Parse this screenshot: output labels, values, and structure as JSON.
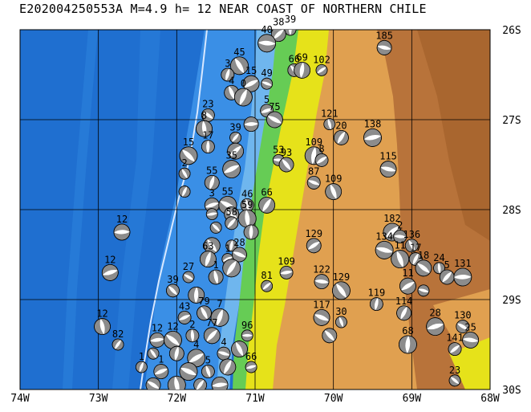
{
  "title": "E202004250553A M=4.9 h= 12 NEAR COAST OF NORTHERN CHILE",
  "x_ticks": [
    "74W",
    "73W",
    "72W",
    "71W",
    "70W",
    "69W",
    "68W"
  ],
  "y_ticks": [
    "26S",
    "27S",
    "28S",
    "29S",
    "30S"
  ],
  "colors": {
    "deep_ocean": "#1f6fd0",
    "mid_ocean": "#2f86e0",
    "shelf": "#6fb6ee",
    "coast_green": "#66cc55",
    "lowland_yellow": "#e6e21a",
    "highland_orange": "#e0a050",
    "highland_brown": "#b8733a",
    "trench_line": "#d8e8ff",
    "grid": "#000000"
  },
  "events": [
    {
      "lon": -70.55,
      "lat": -26.0,
      "label": "39"
    },
    {
      "lon": -70.7,
      "lat": -26.05,
      "label": "38"
    },
    {
      "lon": -70.85,
      "lat": -26.15,
      "label": "40"
    },
    {
      "lon": -70.5,
      "lat": -26.45,
      "label": "66"
    },
    {
      "lon": -70.4,
      "lat": -26.45,
      "label": "69"
    },
    {
      "lon": -70.15,
      "lat": -26.45,
      "label": "102"
    },
    {
      "lon": -69.35,
      "lat": -26.2,
      "label": "185"
    },
    {
      "lon": -71.2,
      "lat": -26.4,
      "label": "45"
    },
    {
      "lon": -71.35,
      "lat": -26.5,
      "label": "3"
    },
    {
      "lon": -71.05,
      "lat": -26.6,
      "label": "15"
    },
    {
      "lon": -70.85,
      "lat": -26.6,
      "label": "49"
    },
    {
      "lon": -71.3,
      "lat": -26.7,
      "label": "4"
    },
    {
      "lon": -71.15,
      "lat": -26.75,
      "label": "0"
    },
    {
      "lon": -70.85,
      "lat": -26.9,
      "label": "5"
    },
    {
      "lon": -70.75,
      "lat": -27.0,
      "label": "75"
    },
    {
      "lon": -70.05,
      "lat": -27.05,
      "label": "121"
    },
    {
      "lon": -69.9,
      "lat": -27.2,
      "label": "20"
    },
    {
      "lon": -69.5,
      "lat": -27.2,
      "label": "138"
    },
    {
      "lon": -71.6,
      "lat": -26.95,
      "label": "23"
    },
    {
      "lon": -71.65,
      "lat": -27.1,
      "label": "8"
    },
    {
      "lon": -71.25,
      "lat": -27.2,
      "label": "39"
    },
    {
      "lon": -71.05,
      "lat": -27.05,
      "label": ""
    },
    {
      "lon": -71.85,
      "lat": -27.4,
      "label": "15"
    },
    {
      "lon": -71.6,
      "lat": -27.3,
      "label": "17"
    },
    {
      "lon": -71.25,
      "lat": -27.35,
      "label": ""
    },
    {
      "lon": -70.7,
      "lat": -27.45,
      "label": "53"
    },
    {
      "lon": -70.6,
      "lat": -27.5,
      "label": "93"
    },
    {
      "lon": -70.25,
      "lat": -27.4,
      "label": "109"
    },
    {
      "lon": -70.15,
      "lat": -27.45,
      "label": "8"
    },
    {
      "lon": -69.3,
      "lat": -27.55,
      "label": "115"
    },
    {
      "lon": -71.9,
      "lat": -27.6,
      "label": "2"
    },
    {
      "lon": -71.55,
      "lat": -27.7,
      "label": "55"
    },
    {
      "lon": -71.3,
      "lat": -27.55,
      "label": "35"
    },
    {
      "lon": -70.25,
      "lat": -27.7,
      "label": "87"
    },
    {
      "lon": -70.0,
      "lat": -27.8,
      "label": "109"
    },
    {
      "lon": -71.9,
      "lat": -27.8,
      "label": ""
    },
    {
      "lon": -71.55,
      "lat": -27.95,
      "label": "3"
    },
    {
      "lon": -71.35,
      "lat": -27.95,
      "label": "55"
    },
    {
      "lon": -71.1,
      "lat": -27.95,
      "label": "46"
    },
    {
      "lon": -70.85,
      "lat": -27.95,
      "label": "66"
    },
    {
      "lon": -71.55,
      "lat": -28.05,
      "label": ""
    },
    {
      "lon": -71.3,
      "lat": -28.05,
      "label": ""
    },
    {
      "lon": -71.1,
      "lat": -28.1,
      "label": "59"
    },
    {
      "lon": -71.3,
      "lat": -28.15,
      "label": "58"
    },
    {
      "lon": -72.7,
      "lat": -28.25,
      "label": "12"
    },
    {
      "lon": -71.5,
      "lat": -28.2,
      "label": ""
    },
    {
      "lon": -71.05,
      "lat": -28.25,
      "label": ""
    },
    {
      "lon": -69.25,
      "lat": -28.25,
      "label": "182"
    },
    {
      "lon": -69.15,
      "lat": -28.3,
      "label": "2"
    },
    {
      "lon": -71.55,
      "lat": -28.4,
      "label": ""
    },
    {
      "lon": -71.3,
      "lat": -28.4,
      "label": ""
    },
    {
      "lon": -70.25,
      "lat": -28.4,
      "label": "129"
    },
    {
      "lon": -69.35,
      "lat": -28.45,
      "label": "134"
    },
    {
      "lon": -69.0,
      "lat": -28.4,
      "label": "136"
    },
    {
      "lon": -71.6,
      "lat": -28.55,
      "label": "63"
    },
    {
      "lon": -71.35,
      "lat": -28.55,
      "label": "1"
    },
    {
      "lon": -71.2,
      "lat": -28.5,
      "label": "28"
    },
    {
      "lon": -69.15,
      "lat": -28.55,
      "label": "11"
    },
    {
      "lon": -68.95,
      "lat": -28.55,
      "label": "17"
    },
    {
      "lon": -72.85,
      "lat": -28.7,
      "label": "12"
    },
    {
      "lon": -71.85,
      "lat": -28.75,
      "label": "27"
    },
    {
      "lon": -71.5,
      "lat": -28.75,
      "label": "1"
    },
    {
      "lon": -71.3,
      "lat": -28.65,
      "label": ""
    },
    {
      "lon": -70.6,
      "lat": -28.7,
      "label": "109"
    },
    {
      "lon": -68.85,
      "lat": -28.65,
      "label": "18"
    },
    {
      "lon": -68.65,
      "lat": -28.65,
      "label": "24"
    },
    {
      "lon": -68.55,
      "lat": -28.75,
      "label": "5"
    },
    {
      "lon": -68.35,
      "lat": -28.75,
      "label": "131"
    },
    {
      "lon": -72.05,
      "lat": -28.9,
      "label": "39"
    },
    {
      "lon": -71.75,
      "lat": -28.95,
      "label": ""
    },
    {
      "lon": -70.85,
      "lat": -28.85,
      "label": "81"
    },
    {
      "lon": -70.15,
      "lat": -28.8,
      "label": "122"
    },
    {
      "lon": -69.9,
      "lat": -28.9,
      "label": "129"
    },
    {
      "lon": -69.45,
      "lat": -29.05,
      "label": "119"
    },
    {
      "lon": -69.05,
      "lat": -28.85,
      "label": "11"
    },
    {
      "lon": -68.85,
      "lat": -28.9,
      "label": ""
    },
    {
      "lon": -71.65,
      "lat": -29.15,
      "label": "79"
    },
    {
      "lon": -71.45,
      "lat": -29.2,
      "label": "7"
    },
    {
      "lon": -71.9,
      "lat": -29.2,
      "label": "43"
    },
    {
      "lon": -70.15,
      "lat": -29.2,
      "label": "117"
    },
    {
      "lon": -69.9,
      "lat": -29.25,
      "label": "30"
    },
    {
      "lon": -69.1,
      "lat": -29.15,
      "label": "114"
    },
    {
      "lon": -68.7,
      "lat": -29.3,
      "label": "28"
    },
    {
      "lon": -68.35,
      "lat": -29.3,
      "label": "130"
    },
    {
      "lon": -72.95,
      "lat": -29.3,
      "label": "12"
    },
    {
      "lon": -72.75,
      "lat": -29.5,
      "label": "82"
    },
    {
      "lon": -72.25,
      "lat": -29.45,
      "label": "12"
    },
    {
      "lon": -72.05,
      "lat": -29.45,
      "label": "12"
    },
    {
      "lon": -71.8,
      "lat": -29.4,
      "label": "2"
    },
    {
      "lon": -71.55,
      "lat": -29.4,
      "label": "77"
    },
    {
      "lon": -71.1,
      "lat": -29.4,
      "label": "96"
    },
    {
      "lon": -70.05,
      "lat": -29.4,
      "label": ""
    },
    {
      "lon": -69.05,
      "lat": -29.5,
      "label": "68"
    },
    {
      "lon": -68.45,
      "lat": -29.55,
      "label": "141"
    },
    {
      "lon": -68.25,
      "lat": -29.45,
      "label": "25"
    },
    {
      "lon": -72.3,
      "lat": -29.6,
      "label": ""
    },
    {
      "lon": -72.0,
      "lat": -29.6,
      "label": ""
    },
    {
      "lon": -71.75,
      "lat": -29.65,
      "label": "4"
    },
    {
      "lon": -71.4,
      "lat": -29.6,
      "label": "4"
    },
    {
      "lon": -71.2,
      "lat": -29.55,
      "label": ""
    },
    {
      "lon": -72.45,
      "lat": -29.75,
      "label": "1"
    },
    {
      "lon": -72.2,
      "lat": -29.8,
      "label": "1"
    },
    {
      "lon": -71.85,
      "lat": -29.8,
      "label": ""
    },
    {
      "lon": -71.6,
      "lat": -29.8,
      "label": "5"
    },
    {
      "lon": -71.35,
      "lat": -29.75,
      "label": ""
    },
    {
      "lon": -71.05,
      "lat": -29.75,
      "label": "66"
    },
    {
      "lon": -72.3,
      "lat": -29.95,
      "label": ""
    },
    {
      "lon": -72.0,
      "lat": -29.95,
      "label": ""
    },
    {
      "lon": -71.7,
      "lat": -29.95,
      "label": ""
    },
    {
      "lon": -71.45,
      "lat": -29.95,
      "label": ""
    },
    {
      "lon": -68.45,
      "lat": -29.9,
      "label": "23"
    }
  ]
}
